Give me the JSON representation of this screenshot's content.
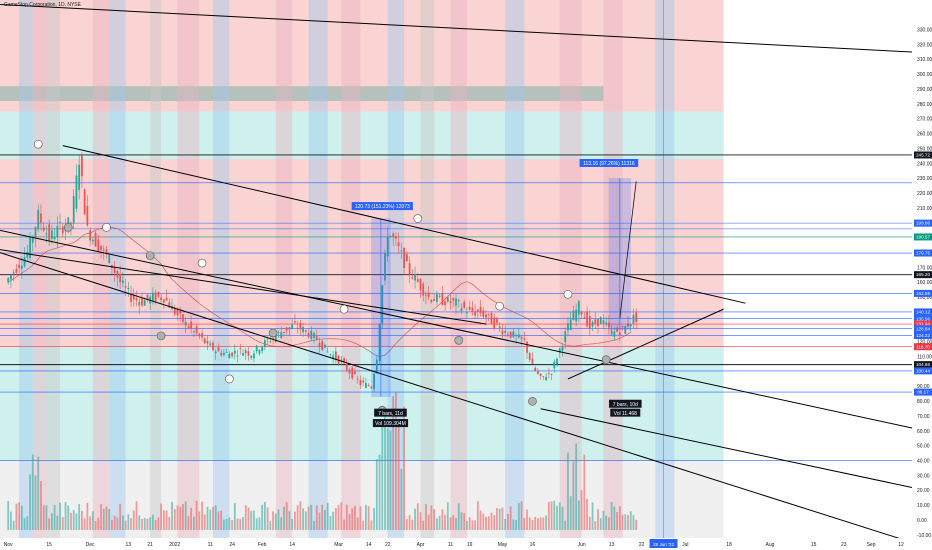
{
  "header": {
    "title": "GameStop Corporation, 1D, NYSE"
  },
  "colors": {
    "up": "#26a69a",
    "down": "#ef5350",
    "zone_red": "#f9c9c7",
    "zone_teal": "#c2ede9",
    "zone_gray": "#a9bdb8",
    "band_blue": "#9fc8ee",
    "band_pink": "#e6b3c0",
    "hline_blue": "#2962ff",
    "hline_dark": "#131722",
    "hline_green": "#089981",
    "hline_red": "#f23645",
    "trend": "#000000",
    "ma": "#c94646",
    "label_blue": "#2962ff",
    "label_dark": "#131722"
  },
  "chart_data": {
    "type": "candlestick",
    "title": "GameStop Corporation, 1D, NYSE",
    "xlabel": "",
    "ylabel": "",
    "x_axis_labels": [
      {
        "day": 0,
        "text": "Nov"
      },
      {
        "day": 15,
        "text": "15"
      },
      {
        "day": 30,
        "text": "Dec"
      },
      {
        "day": 44,
        "text": "13"
      },
      {
        "day": 52,
        "text": "21"
      },
      {
        "day": 61,
        "text": "2022"
      },
      {
        "day": 74,
        "text": "11"
      },
      {
        "day": 82,
        "text": "24"
      },
      {
        "day": 93,
        "text": "Feb"
      },
      {
        "day": 104,
        "text": "14"
      },
      {
        "day": 121,
        "text": "Mar"
      },
      {
        "day": 132,
        "text": "14"
      },
      {
        "day": 139,
        "text": "22"
      },
      {
        "day": 151,
        "text": "Apr"
      },
      {
        "day": 162,
        "text": "11"
      },
      {
        "day": 169,
        "text": "19"
      },
      {
        "day": 181,
        "text": "May"
      },
      {
        "day": 192,
        "text": "16"
      },
      {
        "day": 210,
        "text": "Jun"
      },
      {
        "day": 221,
        "text": "13"
      },
      {
        "day": 232,
        "text": "22"
      },
      {
        "day": 240,
        "text": "28 Jun '22"
      },
      {
        "day": 248,
        "text": "Jul"
      },
      {
        "day": 264,
        "text": "18"
      },
      {
        "day": 279,
        "text": "Aug"
      },
      {
        "day": 295,
        "text": "15"
      },
      {
        "day": 306,
        "text": "23"
      },
      {
        "day": 316,
        "text": "Sep"
      },
      {
        "day": 327,
        "text": "12"
      }
    ],
    "y_axis_ticks": [
      330,
      320,
      310,
      300,
      290,
      280,
      270,
      260,
      250,
      240,
      230,
      220,
      210,
      200,
      190,
      180,
      170,
      160,
      150,
      140,
      130,
      120,
      110,
      100,
      90,
      80,
      70,
      60,
      50,
      40,
      30,
      20,
      10,
      0,
      -10
    ],
    "y_axis_labels": [
      "330.00",
      "320.00",
      "310.00",
      "300.00",
      "290.00",
      "280.00",
      "270.00",
      "260.00",
      "250.00",
      "240.00",
      "230.00",
      "220.00",
      "210.00",
      "200.00",
      "190.00",
      "180.00",
      "170.00",
      "160.00",
      "150.00",
      "140.00",
      "130.00",
      "120.00",
      "110.00",
      "100.00",
      "90.00",
      "80.00",
      "70.00",
      "60.00",
      "50.00",
      "40.00",
      "30.00",
      "20.00",
      "10.00",
      "0.00",
      "-10.00"
    ],
    "price_tags": [
      {
        "value": 245.72,
        "text": "245.72",
        "bg": "#131722"
      },
      {
        "value": 199.86,
        "text": "199.86",
        "bg": "#2962ff"
      },
      {
        "value": 190.57,
        "text": "190.57",
        "bg": "#089981"
      },
      {
        "value": 179.75,
        "text": "179.75",
        "bg": "#2962ff"
      },
      {
        "value": 165.2,
        "text": "165.20",
        "bg": "#131722"
      },
      {
        "value": 152.59,
        "text": "152.59",
        "bg": "#2962ff"
      },
      {
        "value": 140.12,
        "text": "140.12",
        "bg": "#2962ff"
      },
      {
        "value": 135.56,
        "text": "135.56",
        "bg": "#2962ff"
      },
      {
        "value": 131.94,
        "text": "131.94",
        "bg": "#f23645"
      },
      {
        "value": 128.84,
        "text": "128.84",
        "bg": "#2962ff"
      },
      {
        "value": 124.22,
        "text": "124.22",
        "bg": "#2962ff"
      },
      {
        "value": 116.7,
        "text": "116.70",
        "bg": "#f23645"
      },
      {
        "value": 104.66,
        "text": "104.66",
        "bg": "#131722"
      },
      {
        "value": 100.44,
        "text": "100.44",
        "bg": "#2962ff"
      },
      {
        "value": 86.17,
        "text": "86.17",
        "bg": "#2962ff"
      }
    ],
    "annotations": [
      {
        "text": "120.73 (151.23%) 12073",
        "day": 137,
        "value": 211
      },
      {
        "text": "7 bars, 11d",
        "day": 140,
        "value": 72
      },
      {
        "text": "Vol 109.304M",
        "day": 140,
        "value": 65
      },
      {
        "text": "113.16 (97.26%) 11316",
        "day": 220,
        "value": 240
      },
      {
        "text": "7 bars, 10d",
        "day": 226,
        "value": 78
      },
      {
        "text": "Vol 11.468",
        "day": 226,
        "value": 72
      }
    ],
    "h_lines": [
      {
        "value": 245.72,
        "color": "#131722"
      },
      {
        "value": 227,
        "color": "#2962ff"
      },
      {
        "value": 199.86,
        "color": "#2962ff"
      },
      {
        "value": 196,
        "color": "#2962ff"
      },
      {
        "value": 190.57,
        "color": "#089981"
      },
      {
        "value": 179.75,
        "color": "#2962ff"
      },
      {
        "value": 165.2,
        "color": "#131722"
      },
      {
        "value": 152.59,
        "color": "#2962ff"
      },
      {
        "value": 140.12,
        "color": "#2962ff"
      },
      {
        "value": 135.56,
        "color": "#2962ff"
      },
      {
        "value": 131.94,
        "color": "#f23645"
      },
      {
        "value": 128.84,
        "color": "#2962ff"
      },
      {
        "value": 124.22,
        "color": "#2962ff"
      },
      {
        "value": 116.7,
        "color": "#f23645"
      },
      {
        "value": 104.66,
        "color": "#131722"
      },
      {
        "value": 100.44,
        "color": "#2962ff"
      },
      {
        "value": 86.17,
        "color": "#2962ff"
      },
      {
        "value": 40,
        "color": "#2962ff"
      }
    ],
    "trend_lines": [
      {
        "from": [
          -3,
          347
        ],
        "to": [
          331,
          315
        ]
      },
      {
        "from": [
          20,
          252
        ],
        "to": [
          270,
          146
        ]
      },
      {
        "from": [
          -3,
          195
        ],
        "to": [
          331,
          62
        ]
      },
      {
        "from": [
          -3,
          180
        ],
        "to": [
          331,
          -15
        ]
      },
      {
        "from": [
          195,
          75
        ],
        "to": [
          331,
          22
        ]
      },
      {
        "from": [
          205,
          95
        ],
        "to": [
          262,
          142
        ]
      },
      {
        "from": [
          -3,
          182
        ],
        "to": [
          175,
          132
        ]
      }
    ],
    "zones": [
      {
        "y_from": 350,
        "y_to": 275,
        "day_to": 262,
        "kind": "red"
      },
      {
        "y_from": 275,
        "y_to": 243,
        "day_to": 262,
        "kind": "teal"
      },
      {
        "y_from": 243,
        "y_to": 116.7,
        "day_to": 262,
        "kind": "red"
      },
      {
        "y_from": 116.7,
        "y_to": 40,
        "day_to": 262,
        "kind": "teal"
      },
      {
        "y_from": 40,
        "y_to": -12,
        "day_to": 262,
        "kind": "plain"
      },
      {
        "y_from": 292,
        "y_to": 282,
        "day_to": 218,
        "kind": "gray"
      }
    ],
    "time_bands": [
      {
        "day_from": 4,
        "day_to": 9,
        "kind": "blue"
      },
      {
        "day_from": 9,
        "day_to": 14,
        "kind": "pink"
      },
      {
        "day_from": 14,
        "day_to": 19,
        "kind": "gray"
      },
      {
        "day_from": 31,
        "day_to": 37,
        "kind": "pink"
      },
      {
        "day_from": 37,
        "day_to": 43,
        "kind": "blue"
      },
      {
        "day_from": 52,
        "day_to": 56,
        "kind": "gray"
      },
      {
        "day_from": 62,
        "day_to": 70,
        "kind": "pink"
      },
      {
        "day_from": 75,
        "day_to": 81,
        "kind": "blue"
      },
      {
        "day_from": 98,
        "day_to": 104,
        "kind": "pink"
      },
      {
        "day_from": 110,
        "day_to": 117,
        "kind": "blue"
      },
      {
        "day_from": 122,
        "day_to": 129,
        "kind": "pink"
      },
      {
        "day_from": 139,
        "day_to": 145,
        "kind": "blue"
      },
      {
        "day_from": 151,
        "day_to": 156,
        "kind": "gray"
      },
      {
        "day_from": 162,
        "day_to": 168,
        "kind": "pink"
      },
      {
        "day_from": 182,
        "day_to": 189,
        "kind": "blue"
      },
      {
        "day_from": 202,
        "day_to": 210,
        "kind": "pink"
      },
      {
        "day_from": 218,
        "day_to": 225,
        "kind": "pink"
      },
      {
        "day_from": 237,
        "day_to": 244,
        "kind": "blue"
      }
    ],
    "measure_boxes": [
      {
        "day_from": 133,
        "day_to": 140,
        "y_from": 83,
        "y_to": 203,
        "arrow": "up"
      },
      {
        "day_from": 220,
        "day_to": 228,
        "y_from": 128,
        "y_to": 230,
        "arrow": "up"
      }
    ],
    "circles": [
      {
        "day": 11,
        "value": 253
      },
      {
        "day": 22,
        "value": 197
      },
      {
        "day": 36,
        "value": 197
      },
      {
        "day": 52,
        "value": 178
      },
      {
        "day": 71,
        "value": 173
      },
      {
        "day": 56,
        "value": 124
      },
      {
        "day": 81,
        "value": 95
      },
      {
        "day": 97,
        "value": 126
      },
      {
        "day": 123,
        "value": 142
      },
      {
        "day": 137,
        "value": 74
      },
      {
        "day": 150,
        "value": 203
      },
      {
        "day": 165,
        "value": 121
      },
      {
        "day": 180,
        "value": 144
      },
      {
        "day": 192,
        "value": 80
      },
      {
        "day": 205,
        "value": 152
      },
      {
        "day": 219,
        "value": 108
      }
    ],
    "ylim": [
      -12,
      350
    ],
    "volume_ylim": [
      0,
      1
    ]
  }
}
